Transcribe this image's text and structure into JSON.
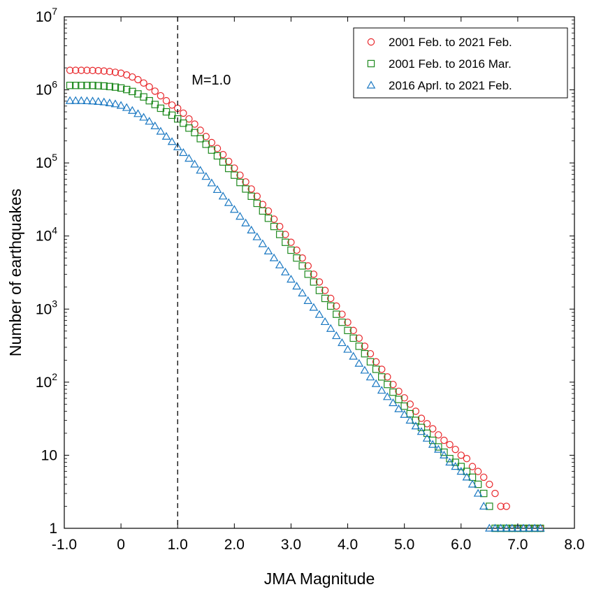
{
  "chart_data": {
    "type": "scatter",
    "xlabel": "JMA Magnitude",
    "ylabel": "Number of earthquakes",
    "x_scale": "linear",
    "y_scale": "log",
    "xlim": [
      -1.0,
      8.0
    ],
    "ylim": [
      1,
      10000000
    ],
    "x_ticks": [
      "-1.0",
      "0",
      "1.0",
      "2.0",
      "3.0",
      "4.0",
      "5.0",
      "6.0",
      "7.0",
      "8.0"
    ],
    "x_tick_values": [
      -1,
      0,
      1,
      2,
      3,
      4,
      5,
      6,
      7,
      8
    ],
    "y_tick_values": [
      1,
      10,
      100,
      1000,
      10000,
      100000,
      1000000,
      10000000
    ],
    "y_ticks": [
      {
        "base": "1",
        "exp": ""
      },
      {
        "base": "10",
        "exp": ""
      },
      {
        "base": "10",
        "exp": "2"
      },
      {
        "base": "10",
        "exp": "3"
      },
      {
        "base": "10",
        "exp": "4"
      },
      {
        "base": "10",
        "exp": "5"
      },
      {
        "base": "10",
        "exp": "6"
      },
      {
        "base": "10",
        "exp": "7"
      }
    ],
    "grid": false,
    "legend_position": "top-right",
    "annotations": [
      {
        "text": "M=1.0",
        "x": 1.0,
        "line": "vertical-dashed"
      }
    ],
    "series": [
      {
        "name": "2001 Feb. to 2021 Feb.",
        "marker": "circle",
        "color": "#e8262a",
        "x": [
          -0.9,
          -0.8,
          -0.7,
          -0.6,
          -0.5,
          -0.4,
          -0.3,
          -0.2,
          -0.1,
          0.0,
          0.1,
          0.2,
          0.3,
          0.4,
          0.5,
          0.6,
          0.7,
          0.8,
          0.9,
          1.0,
          1.1,
          1.2,
          1.3,
          1.4,
          1.5,
          1.6,
          1.7,
          1.8,
          1.9,
          2.0,
          2.1,
          2.2,
          2.3,
          2.4,
          2.5,
          2.6,
          2.7,
          2.8,
          2.9,
          3.0,
          3.1,
          3.2,
          3.3,
          3.4,
          3.5,
          3.6,
          3.7,
          3.8,
          3.9,
          4.0,
          4.1,
          4.2,
          4.3,
          4.4,
          4.5,
          4.6,
          4.7,
          4.8,
          4.9,
          5.0,
          5.1,
          5.2,
          5.3,
          5.4,
          5.5,
          5.6,
          5.7,
          5.8,
          5.9,
          6.0,
          6.1,
          6.2,
          6.3,
          6.4,
          6.5,
          6.6,
          6.7,
          6.8,
          6.9,
          7.0,
          7.1,
          7.2,
          7.3,
          7.4
        ],
        "y": [
          1850000,
          1850000,
          1850000,
          1850000,
          1840000,
          1830000,
          1810000,
          1780000,
          1740000,
          1690000,
          1600000,
          1500000,
          1380000,
          1240000,
          1100000,
          960000,
          830000,
          710000,
          620000,
          560000,
          480000,
          400000,
          340000,
          280000,
          230000,
          190000,
          158000,
          130000,
          105000,
          85000,
          68000,
          55000,
          44000,
          35000,
          27000,
          22000,
          17000,
          13500,
          10500,
          8200,
          6400,
          5000,
          3900,
          3000,
          2350,
          1800,
          1400,
          1100,
          850,
          660,
          510,
          400,
          310,
          245,
          190,
          150,
          118,
          93,
          75,
          61,
          50,
          40,
          32,
          27,
          23,
          19,
          16,
          14,
          12,
          10,
          9,
          7,
          6,
          5,
          4,
          3,
          2,
          2,
          1,
          1,
          1,
          1,
          1,
          1
        ]
      },
      {
        "name": "2001 Feb. to 2016 Mar.",
        "marker": "square",
        "color": "#1f8a1f",
        "x": [
          -0.9,
          -0.8,
          -0.7,
          -0.6,
          -0.5,
          -0.4,
          -0.3,
          -0.2,
          -0.1,
          0.0,
          0.1,
          0.2,
          0.3,
          0.4,
          0.5,
          0.6,
          0.7,
          0.8,
          0.9,
          1.0,
          1.1,
          1.2,
          1.3,
          1.4,
          1.5,
          1.6,
          1.7,
          1.8,
          1.9,
          2.0,
          2.1,
          2.2,
          2.3,
          2.4,
          2.5,
          2.6,
          2.7,
          2.8,
          2.9,
          3.0,
          3.1,
          3.2,
          3.3,
          3.4,
          3.5,
          3.6,
          3.7,
          3.8,
          3.9,
          4.0,
          4.1,
          4.2,
          4.3,
          4.4,
          4.5,
          4.6,
          4.7,
          4.8,
          4.9,
          5.0,
          5.1,
          5.2,
          5.3,
          5.4,
          5.5,
          5.6,
          5.7,
          5.8,
          5.9,
          6.0,
          6.1,
          6.2,
          6.3,
          6.4,
          6.5,
          6.6,
          6.7,
          6.8,
          6.9,
          7.0,
          7.1,
          7.2,
          7.3,
          7.4
        ],
        "y": [
          1150000,
          1150000,
          1150000,
          1150000,
          1150000,
          1140000,
          1130000,
          1110000,
          1090000,
          1060000,
          1010000,
          950000,
          880000,
          800000,
          710000,
          630000,
          560000,
          500000,
          450000,
          400000,
          350000,
          300000,
          260000,
          215000,
          180000,
          150000,
          125000,
          103000,
          84000,
          68000,
          54000,
          44000,
          35000,
          28000,
          22000,
          17500,
          13500,
          10500,
          8200,
          6400,
          5000,
          3900,
          3000,
          2350,
          1800,
          1400,
          1100,
          850,
          660,
          510,
          400,
          310,
          245,
          190,
          150,
          118,
          93,
          73,
          58,
          47,
          37,
          30,
          24,
          20,
          16,
          13,
          11,
          9,
          8,
          7,
          6,
          5,
          4,
          3,
          2,
          1,
          1,
          1,
          1,
          1,
          1,
          1,
          1,
          1
        ]
      },
      {
        "name": "2016 Aprl. to 2021 Feb.",
        "marker": "triangle",
        "color": "#1a78c2",
        "x": [
          -0.9,
          -0.8,
          -0.7,
          -0.6,
          -0.5,
          -0.4,
          -0.3,
          -0.2,
          -0.1,
          0.0,
          0.1,
          0.2,
          0.3,
          0.4,
          0.5,
          0.6,
          0.7,
          0.8,
          0.9,
          1.0,
          1.1,
          1.2,
          1.3,
          1.4,
          1.5,
          1.6,
          1.7,
          1.8,
          1.9,
          2.0,
          2.1,
          2.2,
          2.3,
          2.4,
          2.5,
          2.6,
          2.7,
          2.8,
          2.9,
          3.0,
          3.1,
          3.2,
          3.3,
          3.4,
          3.5,
          3.6,
          3.7,
          3.8,
          3.9,
          4.0,
          4.1,
          4.2,
          4.3,
          4.4,
          4.5,
          4.6,
          4.7,
          4.8,
          4.9,
          5.0,
          5.1,
          5.2,
          5.3,
          5.4,
          5.5,
          5.6,
          5.7,
          5.8,
          5.9,
          6.0,
          6.1,
          6.2,
          6.3,
          6.4,
          6.5,
          6.6,
          6.7,
          6.8,
          6.9,
          7.0,
          7.1,
          7.2,
          7.3,
          7.4
        ],
        "y": [
          710000,
          710000,
          710000,
          705000,
          700000,
          690000,
          680000,
          660000,
          640000,
          610000,
          570000,
          520000,
          470000,
          420000,
          370000,
          320000,
          270000,
          230000,
          195000,
          165000,
          138000,
          115000,
          96000,
          79000,
          65000,
          53000,
          43000,
          35000,
          28500,
          23000,
          18500,
          15000,
          12000,
          9700,
          7800,
          6200,
          5000,
          4000,
          3200,
          2550,
          2050,
          1650,
          1300,
          1050,
          840,
          670,
          540,
          430,
          345,
          280,
          225,
          180,
          145,
          117,
          95,
          77,
          63,
          52,
          43,
          36,
          30,
          25,
          21,
          17,
          14,
          12,
          10,
          8,
          7,
          6,
          5,
          4,
          3,
          2,
          1,
          1,
          1,
          1,
          1,
          1,
          1,
          1,
          1,
          1
        ]
      }
    ]
  }
}
